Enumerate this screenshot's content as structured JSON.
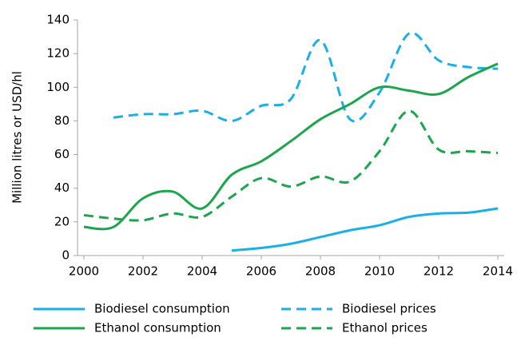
{
  "chart_data": {
    "type": "line",
    "y_label": "Million litres or USD/hl",
    "x": [
      2000,
      2001,
      2002,
      2003,
      2004,
      2005,
      2006,
      2007,
      2008,
      2009,
      2010,
      2011,
      2012,
      2013,
      2014
    ],
    "xlim": [
      2000,
      2014
    ],
    "xticks": [
      2000,
      2002,
      2004,
      2006,
      2008,
      2010,
      2012,
      2014
    ],
    "ylim": [
      0,
      140
    ],
    "yticks": [
      0,
      20,
      40,
      60,
      80,
      100,
      120,
      140
    ],
    "series": [
      {
        "name": "Biodiesel consumption",
        "color": "#1aafe6",
        "dashed": false,
        "values": [
          null,
          null,
          null,
          null,
          null,
          3,
          4.5,
          7,
          11,
          15,
          18,
          23,
          25,
          25.5,
          28
        ]
      },
      {
        "name": "Biodiesel prices",
        "color": "#1aafe6",
        "dashed": true,
        "values": [
          null,
          82,
          84,
          84,
          86,
          80,
          89,
          93,
          128,
          81,
          97,
          132,
          116,
          112,
          111
        ]
      },
      {
        "name": "Ethanol consumption",
        "color": "#1ba64c",
        "dashed": false,
        "values": [
          17,
          17,
          34,
          38,
          28,
          48,
          56,
          68,
          81,
          90,
          100,
          98,
          96,
          106,
          114
        ]
      },
      {
        "name": "Ethanol prices",
        "color": "#1ba64c",
        "dashed": true,
        "values": [
          24,
          22,
          21,
          25,
          23,
          35,
          46,
          41,
          47,
          44,
          62,
          86,
          63,
          62,
          61
        ]
      }
    ]
  }
}
